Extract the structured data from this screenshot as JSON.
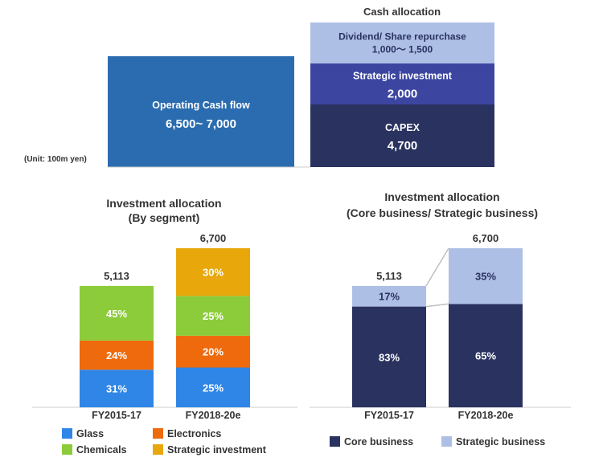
{
  "cash_allocation": {
    "title": "Cash allocation",
    "unit": "(Unit: 100m yen)",
    "operating": {
      "label": "Operating Cash flow",
      "value": "6,500~ 7,000"
    },
    "blocks": [
      {
        "label": "Dividend/ Share repurchase",
        "value": "1,000～ 1,500",
        "color": "#aebfe6"
      },
      {
        "label": "Strategic investment",
        "value": "2,000",
        "color": "#3c46a0"
      },
      {
        "label": "CAPEX",
        "value": "4,700",
        "color": "#2a3260"
      }
    ],
    "operating_color": "#2b6cb0"
  },
  "chart_data": [
    {
      "type": "bar",
      "title": "Investment allocation",
      "subtitle": "(By segment)",
      "categories": [
        "FY2015-17",
        "FY2018-20e"
      ],
      "totals": [
        5113,
        6700
      ],
      "total_labels": [
        "5,113",
        "6,700"
      ],
      "series": [
        {
          "name": "Glass",
          "values": [
            31,
            25
          ],
          "color": "#2f86e6"
        },
        {
          "name": "Electronics",
          "values": [
            24,
            20
          ],
          "color": "#ef6a0c"
        },
        {
          "name": "Chemicals",
          "values": [
            45,
            25
          ],
          "color": "#8ccc3a"
        },
        {
          "name": "Strategic investment",
          "values": [
            0,
            30
          ],
          "color": "#e8a70a"
        }
      ]
    },
    {
      "type": "bar",
      "title": "Investment allocation",
      "subtitle": "(Core business/ Strategic business)",
      "categories": [
        "FY2015-17",
        "FY2018-20e"
      ],
      "totals": [
        5113,
        6700
      ],
      "total_labels": [
        "5,113",
        "6,700"
      ],
      "series": [
        {
          "name": "Core business",
          "values": [
            83,
            65
          ],
          "color": "#2a3260"
        },
        {
          "name": "Strategic business",
          "values": [
            17,
            35
          ],
          "color": "#aebfe6"
        }
      ]
    }
  ]
}
